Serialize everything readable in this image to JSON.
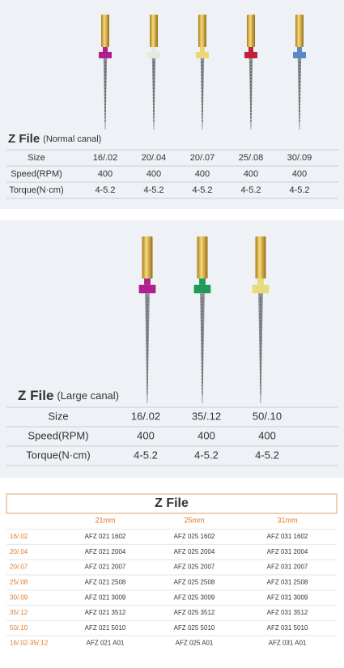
{
  "normal": {
    "title": "Z File",
    "subtitle": "(Normal canal)",
    "rows": [
      [
        "Size",
        "16/.02",
        "20/.04",
        "20/.07",
        "25/.08",
        "30/.09"
      ],
      [
        "Speed(RPM)",
        "400",
        "400",
        "400",
        "400",
        "400"
      ],
      [
        "Torque(N·cm)",
        "4-5.2",
        "4-5.2",
        "4-5.2",
        "4-5.2",
        "4-5.2"
      ]
    ]
  },
  "large": {
    "title": "Z File",
    "subtitle": "(Large canal)",
    "rows": [
      [
        "Size",
        "16/.02",
        "35/.12",
        "50/.10"
      ],
      [
        "Speed(RPM)",
        "400",
        "400",
        "400"
      ],
      [
        "Torque(N·cm)",
        "4-5.2",
        "4-5.2",
        "4-5.2"
      ]
    ]
  },
  "codes": {
    "title": "Z File",
    "header": [
      "21mm",
      "25mm",
      "31mm"
    ],
    "rows": [
      [
        "16/.02",
        "AFZ 021 1602",
        "AFZ 025 1602",
        "AFZ 031 1602"
      ],
      [
        "20/.04",
        "AFZ 021 2004",
        "AFZ 025 2004",
        "AFZ 031 2004"
      ],
      [
        "20/.07",
        "AFZ 021 2007",
        "AFZ 025 2007",
        "AFZ 031 2007"
      ],
      [
        "25/.08",
        "AFZ 021 2508",
        "AFZ 025 2508",
        "AFZ 031 2508"
      ],
      [
        "30/.09",
        "AFZ 021 3009",
        "AFZ 025 3009",
        "AFZ 031 3009"
      ],
      [
        "35/.12",
        "AFZ 021 3512",
        "AFZ 025 3512",
        "AFZ 031 3512"
      ],
      [
        "50/.10",
        "AFZ 021 5010",
        "AFZ 025 5010",
        "AFZ 031 5010"
      ],
      [
        "16/.02-35/.12",
        "AFZ 021 A01",
        "AFZ 025 A01",
        "AFZ 031 A01"
      ]
    ]
  }
}
